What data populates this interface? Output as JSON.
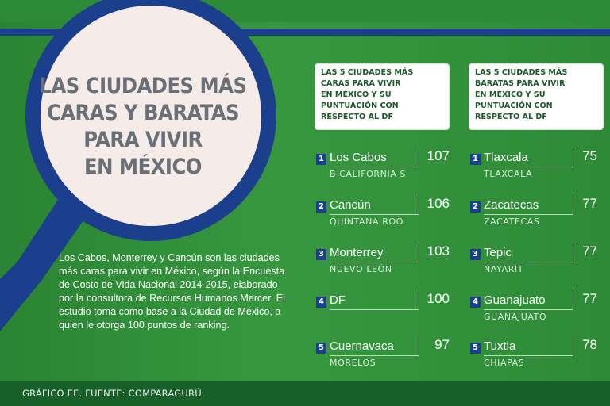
{
  "title_lines": [
    "LAS CIUDADES MÁS",
    "CARAS Y BARATAS",
    "PARA VIVIR",
    "EN MÉXICO"
  ],
  "description": "Los Cabos, Monterrey y Cancún  son las ciudades más caras para vivir en México, según la Encuesta de Costo de Vida Nacional 2014-2015, elaborado por la consultora de Recursos Humanos Mercer. El estudio toma como base a la Ciudad de México, a quien le otorga 100 puntos de ranking.",
  "expensive_header": [
    "LAS 5 CIUDADES MÁS",
    "CARAS PARA VIVIR",
    "EN MÉXICO Y SU",
    "PUNTUACIÓN CON",
    "RESPECTO AL DF"
  ],
  "cheap_header": [
    "LAS 5 CIUDADES MÁS",
    "BARATAS PARA VIVIR",
    "EN MÉXICO Y SU",
    "PUNTUACIÓN CON",
    "RESPECTO AL DF"
  ],
  "expensive": [
    {
      "rank": "1",
      "city": "Los Cabos",
      "state": "B CALIFORNIA S",
      "score": "107"
    },
    {
      "rank": "2",
      "city": "Cancún",
      "state": "QUINTANA ROO",
      "score": "106"
    },
    {
      "rank": "3",
      "city": "Monterrey",
      "state": "NUEVO LEÓN",
      "score": "103"
    },
    {
      "rank": "4",
      "city": "DF",
      "state": "",
      "score": "100"
    },
    {
      "rank": "5",
      "city": "Cuernavaca",
      "state": "MORELOS",
      "score": "97"
    }
  ],
  "cheap": [
    {
      "rank": "1",
      "city": "Tlaxcala",
      "state": "TLAXCALA",
      "score": "75"
    },
    {
      "rank": "2",
      "city": "Zacatecas",
      "state": "ZACATECAS",
      "score": "77"
    },
    {
      "rank": "3",
      "city": "Tepic",
      "state": "NAYARIT",
      "score": "77"
    },
    {
      "rank": "4",
      "city": "Guanajuato",
      "state": "GUANAJUATO",
      "score": "77"
    },
    {
      "rank": "5",
      "city": "Tuxtla",
      "state": "CHIAPAS",
      "score": "78"
    }
  ],
  "footer": "GRÁFICO EE. FUENTE: COMPARAGURÚ.",
  "colors": {
    "green": "#2f8c38",
    "navy": "#1b3f8c",
    "lens_fill": "#f5ecea",
    "footer": "#17602a"
  }
}
